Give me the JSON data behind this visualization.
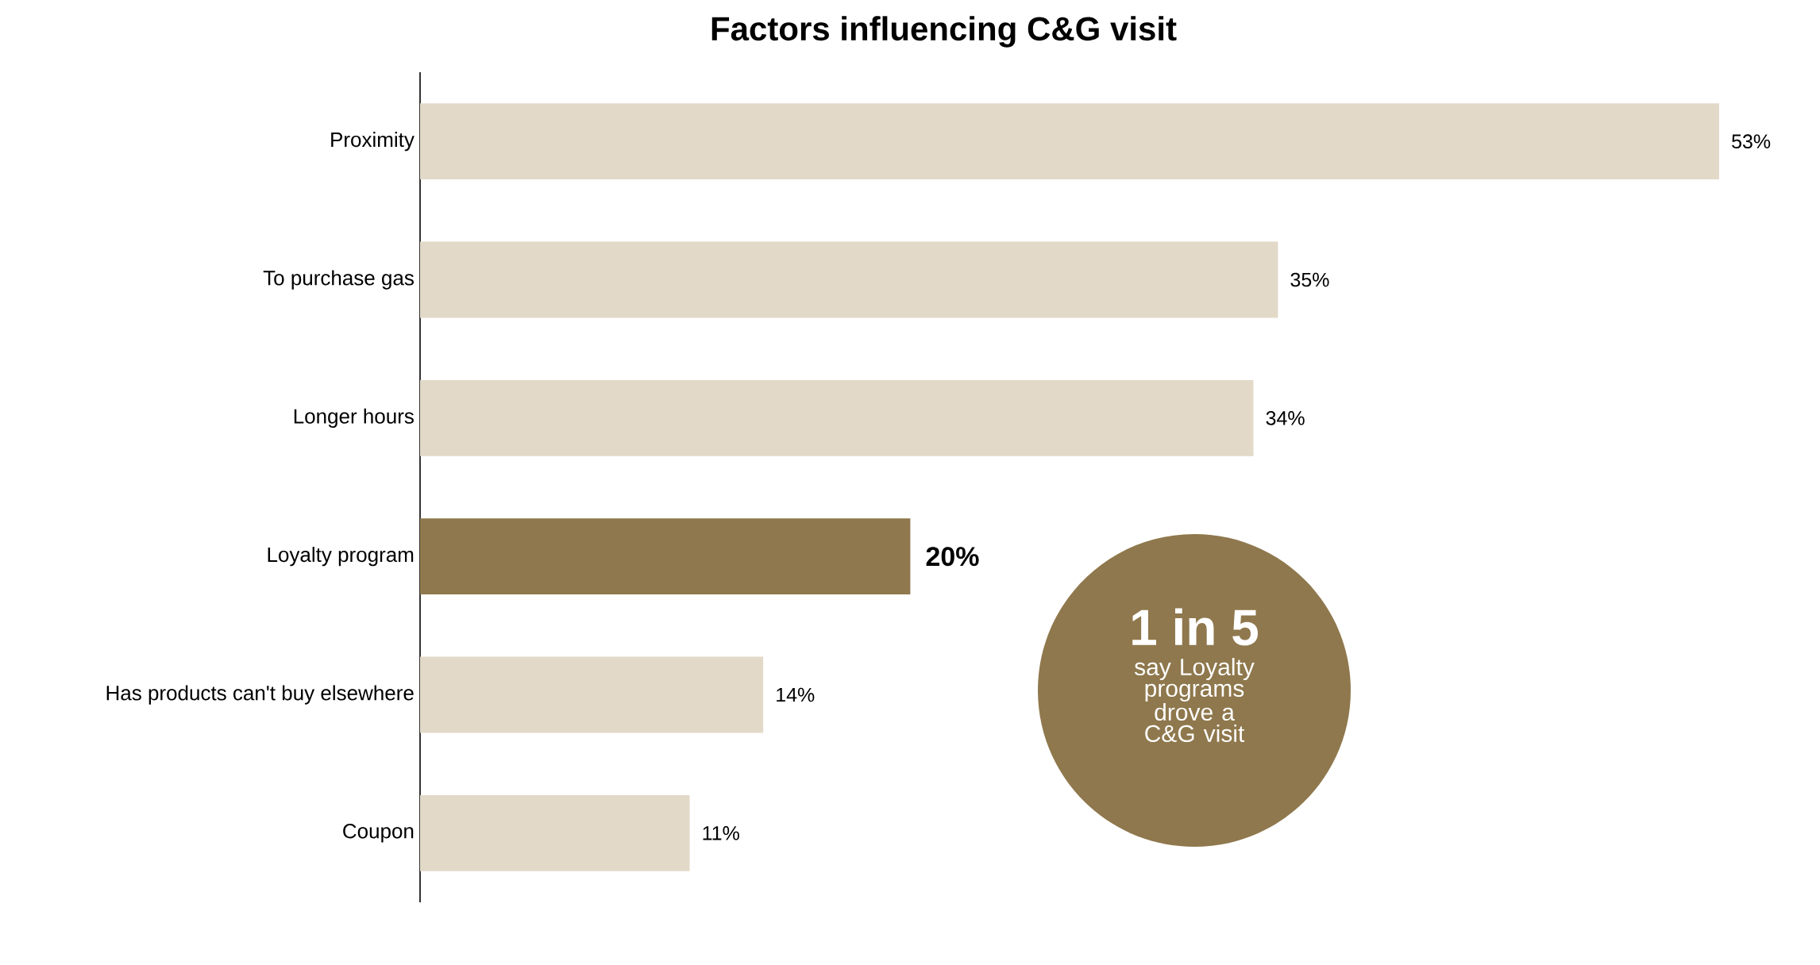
{
  "chart_data": {
    "type": "bar",
    "orientation": "horizontal",
    "title": "Factors influencing C&G visit",
    "categories": [
      "Proximity",
      "To purchase gas",
      "Longer hours",
      "Loyalty program",
      "Has products can't buy elsewhere",
      "Coupon"
    ],
    "values": [
      53,
      35,
      34,
      20,
      14,
      11
    ],
    "colors": [
      "#e2d9c8",
      "#e2d9c8",
      "#e2d9c8",
      "#8f784d",
      "#e2d9c8",
      "#e2d9c8"
    ],
    "value_labels": [
      "53%",
      "35%",
      "34%",
      "20%",
      "14%",
      "11%"
    ],
    "xlim": [
      0,
      53
    ],
    "tick_labels": "y",
    "annotations": [
      "1 in 5",
      "say Loyalty programs drove a C&G visit"
    ]
  }
}
